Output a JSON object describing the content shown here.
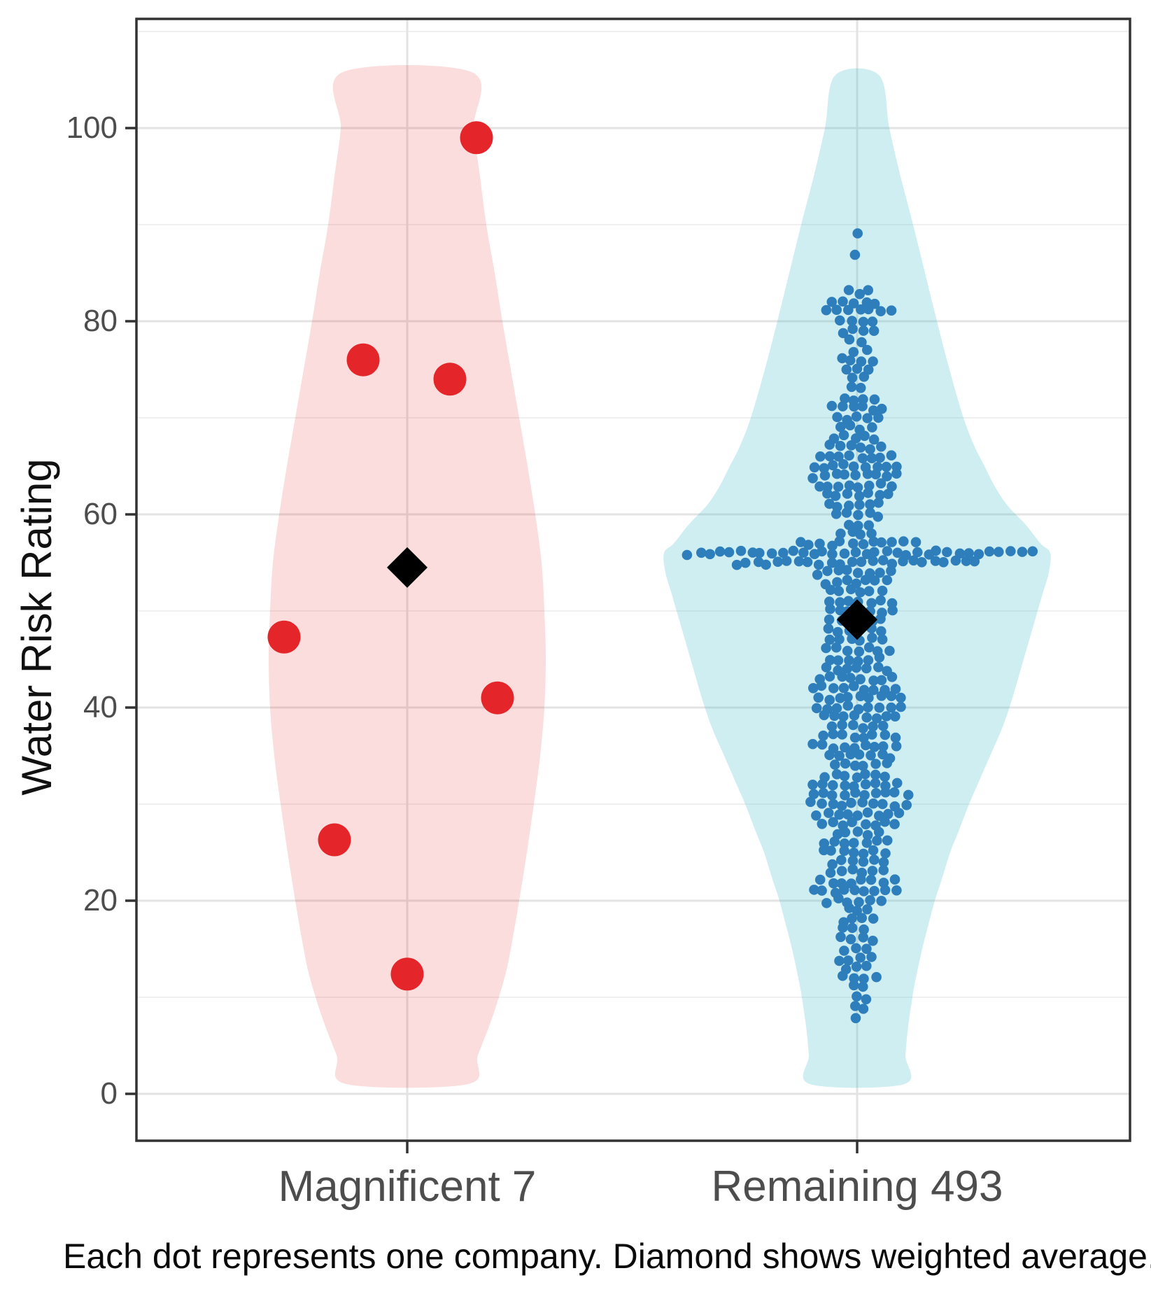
{
  "chart_data": {
    "type": "violin_beeswarm",
    "title": "",
    "ylabel": "Water Risk Rating",
    "xlabel": "",
    "caption": "Each dot represents one company. Diamond shows weighted average.",
    "yticks": [
      "0",
      "20",
      "40",
      "60",
      "80",
      "100"
    ],
    "ytick_values": [
      0,
      20,
      40,
      60,
      80,
      100
    ],
    "ylim": [
      -6,
      111
    ],
    "grid": "on",
    "legend": "none",
    "marker_note": "Diamond shows weighted average",
    "colors": {
      "magnificent7_dot": "#e42529",
      "magnificent7_violin_fill": "rgba(228,26,28,0.15)",
      "remaining_dot": "#2e7ebc",
      "remaining_violin_fill": "rgba(58,186,200,0.25)",
      "diamond": "#000000",
      "grid_major": "#e3e3e3",
      "grid_minor": "#f0f0f0",
      "axis_border": "#333333",
      "tick_text": "#4d4d4d"
    },
    "groups": [
      {
        "label": "Magnificent 7",
        "n": 7,
        "weighted_average": 54.5,
        "points": [
          {
            "value": 99,
            "jitter": 99
          },
          {
            "value": 76,
            "jitter": -63
          },
          {
            "value": 74,
            "jitter": 61
          },
          {
            "value": 47.3,
            "jitter": -176
          },
          {
            "value": 41,
            "jitter": 129
          },
          {
            "value": 26.3,
            "jitter": -104
          },
          {
            "value": 12.4,
            "jitter": 0
          }
        ],
        "violin_profile": [
          [
            105.8,
            92
          ],
          [
            100,
            95
          ],
          [
            95,
            104
          ],
          [
            90,
            113
          ],
          [
            85,
            125
          ],
          [
            80,
            136
          ],
          [
            75,
            148
          ],
          [
            70,
            160
          ],
          [
            65,
            172
          ],
          [
            60,
            183
          ],
          [
            55,
            192
          ],
          [
            50,
            196
          ],
          [
            45,
            198
          ],
          [
            40,
            196
          ],
          [
            35,
            190
          ],
          [
            30,
            181
          ],
          [
            25,
            171
          ],
          [
            20,
            160
          ],
          [
            15,
            148
          ],
          [
            12,
            139
          ],
          [
            8,
            122
          ],
          [
            4,
            101
          ],
          [
            1,
            86
          ]
        ]
      },
      {
        "label": "Remaining 493",
        "n": 493,
        "weighted_average": 49.1,
        "distribution": [
          [
            8,
            1
          ],
          [
            9,
            2
          ],
          [
            10,
            2
          ],
          [
            11,
            2
          ],
          [
            12,
            4
          ],
          [
            13,
            3
          ],
          [
            14,
            4
          ],
          [
            15,
            3
          ],
          [
            16,
            4
          ],
          [
            17,
            3
          ],
          [
            18,
            4
          ],
          [
            19,
            3
          ],
          [
            20,
            6
          ],
          [
            21,
            9
          ],
          [
            22,
            8
          ],
          [
            23,
            6
          ],
          [
            24,
            6
          ],
          [
            25,
            7
          ],
          [
            26,
            7
          ],
          [
            27,
            5
          ],
          [
            28,
            8
          ],
          [
            29,
            9
          ],
          [
            30,
            10
          ],
          [
            31,
            10
          ],
          [
            32,
            9
          ],
          [
            33,
            7
          ],
          [
            34,
            6
          ],
          [
            35,
            7
          ],
          [
            36,
            9
          ],
          [
            37,
            8
          ],
          [
            38,
            6
          ],
          [
            39,
            8
          ],
          [
            40,
            9
          ],
          [
            41,
            9
          ],
          [
            42,
            9
          ],
          [
            43,
            8
          ],
          [
            44,
            7
          ],
          [
            45,
            6
          ],
          [
            46,
            7
          ],
          [
            47,
            6
          ],
          [
            48,
            6
          ],
          [
            49,
            6
          ],
          [
            50,
            7
          ],
          [
            51,
            7
          ],
          [
            52,
            6
          ],
          [
            53,
            7
          ],
          [
            54,
            8
          ],
          [
            55,
            24
          ],
          [
            56,
            34
          ],
          [
            57,
            12
          ],
          [
            58,
            4
          ],
          [
            59,
            3
          ],
          [
            60,
            5
          ],
          [
            61,
            6
          ],
          [
            62,
            7
          ],
          [
            63,
            8
          ],
          [
            64,
            9
          ],
          [
            65,
            9
          ],
          [
            66,
            8
          ],
          [
            67,
            6
          ],
          [
            68,
            5
          ],
          [
            69,
            4
          ],
          [
            70,
            5
          ],
          [
            71,
            6
          ],
          [
            72,
            4
          ],
          [
            73,
            2
          ],
          [
            74,
            2
          ],
          [
            75,
            3
          ],
          [
            76,
            4
          ],
          [
            77,
            2
          ],
          [
            78,
            2
          ],
          [
            79,
            4
          ],
          [
            80,
            4
          ],
          [
            81,
            7
          ],
          [
            82,
            5
          ],
          [
            83,
            3
          ],
          [
            87,
            1
          ],
          [
            89,
            1
          ]
        ],
        "violin_profile": [
          [
            105.5,
            31
          ],
          [
            100,
            46
          ],
          [
            95,
            62
          ],
          [
            90,
            80
          ],
          [
            85,
            97
          ],
          [
            80,
            114
          ],
          [
            75,
            132
          ],
          [
            70,
            152
          ],
          [
            67,
            168
          ],
          [
            65,
            182
          ],
          [
            63,
            196
          ],
          [
            61,
            214
          ],
          [
            59,
            240
          ],
          [
            57,
            262
          ],
          [
            56,
            276
          ],
          [
            54,
            274
          ],
          [
            52,
            266
          ],
          [
            50,
            258
          ],
          [
            47,
            246
          ],
          [
            44,
            234
          ],
          [
            41,
            222
          ],
          [
            38,
            208
          ],
          [
            35,
            190
          ],
          [
            32,
            172
          ],
          [
            30,
            160
          ],
          [
            27,
            144
          ],
          [
            25,
            133
          ],
          [
            22,
            120
          ],
          [
            20,
            111
          ],
          [
            17,
            100
          ],
          [
            15,
            93
          ],
          [
            12,
            84
          ],
          [
            10,
            79
          ],
          [
            7,
            73
          ],
          [
            4,
            69
          ],
          [
            1,
            67
          ]
        ]
      }
    ]
  }
}
